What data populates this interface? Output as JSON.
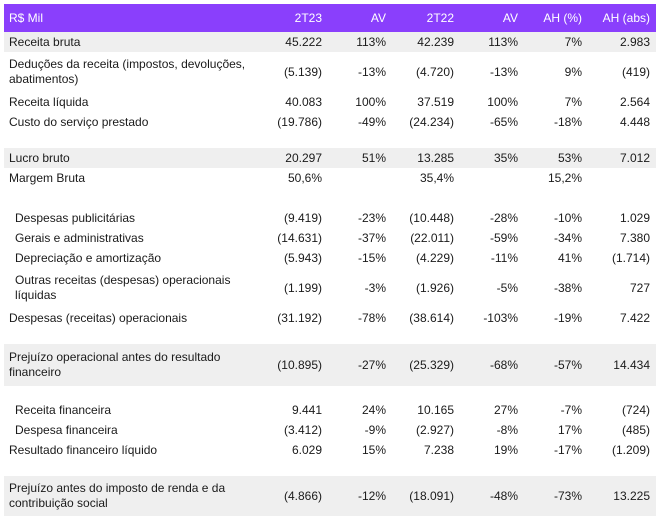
{
  "header": [
    "R$ Mil",
    "2T23",
    "AV",
    "2T22",
    "AV",
    "AH (%)",
    "AH (abs)"
  ],
  "rows": [
    {
      "label": "Receita bruta",
      "v": [
        "45.222",
        "113%",
        "42.239",
        "113%",
        "7%",
        "2.983"
      ],
      "indent": false,
      "shade": true
    },
    {
      "label": "Deduções da receita (impostos, devoluções, abatimentos)",
      "v": [
        "(5.139)",
        "-13%",
        "(4.720)",
        "-13%",
        "9%",
        "(419)"
      ],
      "indent": false,
      "shade": false
    },
    {
      "label": "Receita líquida",
      "v": [
        "40.083",
        "100%",
        "37.519",
        "100%",
        "7%",
        "2.564"
      ],
      "indent": false,
      "shade": false
    },
    {
      "label": "Custo do serviço prestado",
      "v": [
        "(19.786)",
        "-49%",
        "(24.234)",
        "-65%",
        "-18%",
        "4.448"
      ],
      "indent": false,
      "shade": false
    },
    {
      "label": "",
      "v": [
        "",
        "",
        "",
        "",
        "",
        ""
      ],
      "indent": false,
      "shade": false
    },
    {
      "label": "Lucro bruto",
      "v": [
        "20.297",
        "51%",
        "13.285",
        "35%",
        "53%",
        "7.012"
      ],
      "indent": false,
      "shade": true
    },
    {
      "label": "Margem Bruta",
      "v": [
        "50,6%",
        "",
        "35,4%",
        "",
        "15,2%",
        ""
      ],
      "indent": false,
      "shade": false
    },
    {
      "label": "",
      "v": [
        "",
        "",
        "",
        "",
        "",
        ""
      ],
      "indent": false,
      "shade": false
    },
    {
      "label": "Despesas publicitárias",
      "v": [
        "(9.419)",
        "-23%",
        "(10.448)",
        "-28%",
        "-10%",
        "1.029"
      ],
      "indent": true,
      "shade": false
    },
    {
      "label": "Gerais e administrativas",
      "v": [
        "(14.631)",
        "-37%",
        "(22.011)",
        "-59%",
        "-34%",
        "7.380"
      ],
      "indent": true,
      "shade": false
    },
    {
      "label": "Depreciação e amortização",
      "v": [
        "(5.943)",
        "-15%",
        "(4.229)",
        "-11%",
        "41%",
        "(1.714)"
      ],
      "indent": true,
      "shade": false
    },
    {
      "label": "Outras receitas (despesas) operacionais líquidas",
      "v": [
        "(1.199)",
        "-3%",
        "(1.926)",
        "-5%",
        "-38%",
        "727"
      ],
      "indent": true,
      "shade": false
    },
    {
      "label": "Despesas (receitas) operacionais",
      "v": [
        "(31.192)",
        "-78%",
        "(38.614)",
        "-103%",
        "-19%",
        "7.422"
      ],
      "indent": false,
      "shade": false
    },
    {
      "label": "",
      "v": [
        "",
        "",
        "",
        "",
        "",
        ""
      ],
      "indent": false,
      "shade": false
    },
    {
      "label": "Prejuízo operacional antes do resultado financeiro",
      "v": [
        "(10.895)",
        "-27%",
        "(25.329)",
        "-68%",
        "-57%",
        "14.434"
      ],
      "indent": false,
      "shade": true
    },
    {
      "label": "",
      "v": [
        "",
        "",
        "",
        "",
        "",
        ""
      ],
      "indent": false,
      "shade": false
    },
    {
      "label": "Receita financeira",
      "v": [
        "9.441",
        "24%",
        "10.165",
        "27%",
        "-7%",
        "(724)"
      ],
      "indent": true,
      "shade": false
    },
    {
      "label": "Despesa financeira",
      "v": [
        "(3.412)",
        "-9%",
        "(2.927)",
        "-8%",
        "17%",
        "(485)"
      ],
      "indent": true,
      "shade": false
    },
    {
      "label": "Resultado financeiro líquido",
      "v": [
        "6.029",
        "15%",
        "7.238",
        "19%",
        "-17%",
        "(1.209)"
      ],
      "indent": false,
      "shade": false
    },
    {
      "label": "",
      "v": [
        "",
        "",
        "",
        "",
        "",
        ""
      ],
      "indent": false,
      "shade": false
    },
    {
      "label": "Prejuízo antes do imposto de renda e da contribuição social",
      "v": [
        "(4.866)",
        "-12%",
        "(18.091)",
        "-48%",
        "-73%",
        "13.225"
      ],
      "indent": false,
      "shade": true
    }
  ]
}
